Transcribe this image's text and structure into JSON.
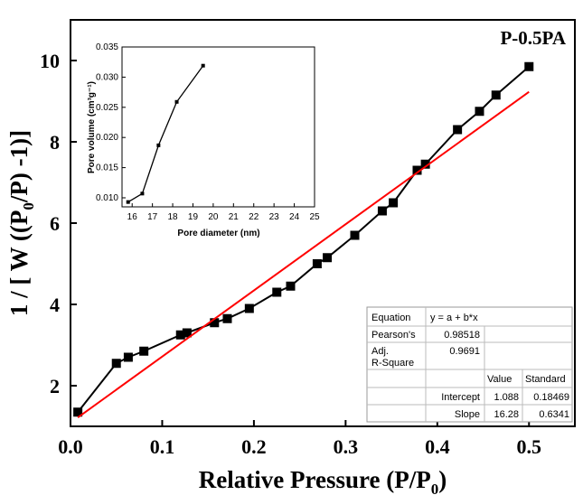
{
  "chart_data": [
    {
      "type": "scatter",
      "label": "P-0.5PA",
      "xlabel_main": "Relative Pressure (P/P",
      "xlabel_sub": "0",
      "xlabel_end": ")",
      "ylabel_pre": "1 / [ W ((P",
      "ylabel_sub": "0",
      "ylabel_post": "/P) -1)]",
      "xlim": [
        0.0,
        0.55
      ],
      "ylim": [
        1.0,
        11.0
      ],
      "xticks": [
        0.0,
        0.1,
        0.2,
        0.3,
        0.4,
        0.5
      ],
      "xtick_labels": [
        "0.0",
        "0.1",
        "0.2",
        "0.3",
        "0.4",
        "0.5"
      ],
      "yticks": [
        2,
        4,
        6,
        8,
        10
      ],
      "ytick_labels": [
        "2",
        "4",
        "6",
        "8",
        "10"
      ],
      "series": [
        {
          "color": "#000000",
          "marker": "square",
          "x": [
            0.008,
            0.05,
            0.063,
            0.08,
            0.12,
            0.127,
            0.157,
            0.171,
            0.195,
            0.225,
            0.24,
            0.269,
            0.28,
            0.31,
            0.34,
            0.352,
            0.378,
            0.387,
            0.422,
            0.446,
            0.464,
            0.5
          ],
          "y": [
            1.35,
            2.55,
            2.7,
            2.85,
            3.25,
            3.3,
            3.55,
            3.65,
            3.9,
            4.3,
            4.45,
            5.0,
            5.15,
            5.7,
            6.3,
            6.5,
            7.3,
            7.45,
            8.3,
            8.75,
            9.15,
            9.85
          ]
        },
        {
          "color": "#ff0000",
          "type": "line",
          "x": [
            0.008,
            0.5
          ],
          "y": [
            1.218,
            9.228
          ]
        }
      ],
      "fit_table": {
        "equation_label": "Equation",
        "equation": "y = a + b*x",
        "pearson_label": "Pearson's",
        "pearson_value": "0.98518",
        "adj_label_1": "Adj.",
        "adj_label_2": "R-Square",
        "adj_value": "0.9691",
        "col_value": "Value",
        "col_standard": "Standard",
        "rows": [
          {
            "name": "Intercept",
            "value": "1.088",
            "standard": "0.18469"
          },
          {
            "name": "Slope",
            "value": "16.28",
            "standard": "0.6341"
          }
        ]
      }
    },
    {
      "type": "line",
      "inset": true,
      "xlabel": "Pore diameter (nm)",
      "ylabel": "Pore volume (cm³g⁻¹)",
      "xlim": [
        15.5,
        25.0
      ],
      "ylim": [
        0.0085,
        0.035
      ],
      "xticks": [
        16,
        17,
        18,
        19,
        20,
        21,
        22,
        23,
        24,
        25
      ],
      "xtick_labels": [
        "16",
        "17",
        "18",
        "19",
        "20",
        "21",
        "22",
        "23",
        "24",
        "25"
      ],
      "yticks": [
        0.01,
        0.015,
        0.02,
        0.025,
        0.03,
        0.035
      ],
      "ytick_labels": [
        "0.010",
        "0.015",
        "0.020",
        "0.025",
        "0.030",
        "0.035"
      ],
      "series": [
        {
          "color": "#000000",
          "marker": "square",
          "x": [
            15.8,
            16.5,
            17.3,
            18.2,
            19.5
          ],
          "y": [
            0.0093,
            0.0107,
            0.0187,
            0.0259,
            0.0319
          ]
        }
      ]
    }
  ]
}
